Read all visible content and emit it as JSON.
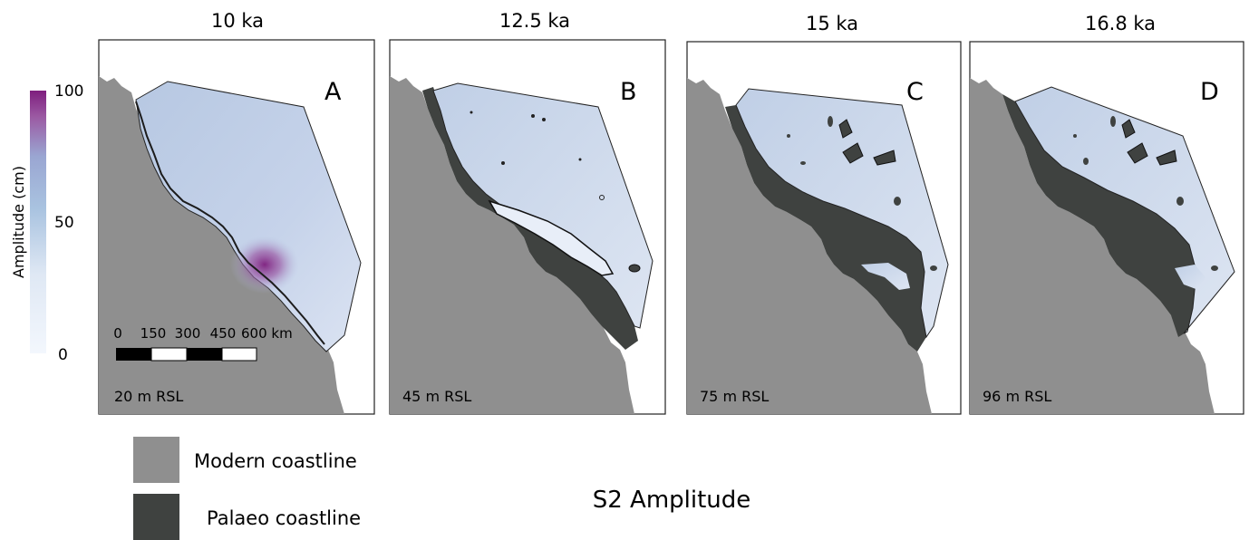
{
  "figure_title": "S2 Amplitude",
  "colors": {
    "modern_land": "#8f8f8f",
    "palaeo_land": "#3f4240",
    "amp_low": "#eef3fb",
    "amp_mid": "#9fbcdc",
    "amp_high": "#7e1e7e",
    "frame": "#222222"
  },
  "colorbar": {
    "label": "Amplitude (cm)",
    "ticks": [
      "100",
      "50",
      "0"
    ],
    "min": 0,
    "max": 100
  },
  "scale_bar": {
    "labels": [
      "0",
      "150",
      "300",
      "450",
      "600 km"
    ]
  },
  "panels": [
    {
      "letter": "A",
      "time": "10 ka",
      "rsl": "20 m RSL",
      "hotspot_amplitude_cm": 100
    },
    {
      "letter": "B",
      "time": "12.5 ka",
      "rsl": "45 m RSL"
    },
    {
      "letter": "C",
      "time": "15 ka",
      "rsl": "75 m RSL"
    },
    {
      "letter": "D",
      "time": "16.8 ka",
      "rsl": "96 m RSL"
    }
  ],
  "legend": {
    "items": [
      {
        "label": "Modern coastline",
        "color": "#8f8f8f"
      },
      {
        "label": "Palaeo coastline",
        "color": "#3f4240"
      }
    ]
  }
}
